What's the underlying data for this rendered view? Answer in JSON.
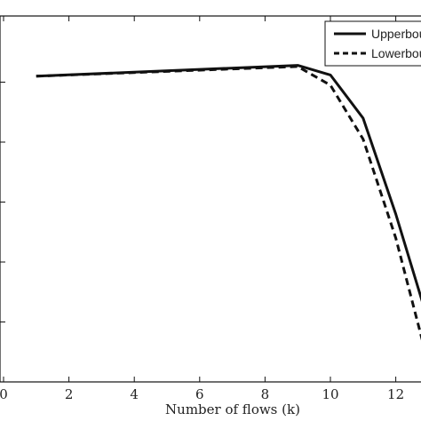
{
  "chart_data": {
    "type": "line",
    "title": "",
    "xlabel": "Number of flows (k)",
    "ylabel": "",
    "xlim": [
      0,
      13
    ],
    "ylim": [
      0,
      6
    ],
    "xticks": [
      0,
      2,
      4,
      6,
      8,
      10,
      12
    ],
    "grid": false,
    "legend": {
      "position": "top-right"
    },
    "series": [
      {
        "name": "Upperbound",
        "style": "solid",
        "color": "#111111",
        "x": [
          1,
          9,
          10,
          11,
          12,
          13
        ],
        "y": [
          5.1,
          5.28,
          5.12,
          4.4,
          2.8,
          1.0
        ]
      },
      {
        "name": "Lowerbound",
        "style": "dashed",
        "color": "#111111",
        "x": [
          1,
          9,
          10,
          11,
          12,
          13
        ],
        "y": [
          5.1,
          5.26,
          4.95,
          4.05,
          2.4,
          0.3
        ]
      }
    ]
  }
}
